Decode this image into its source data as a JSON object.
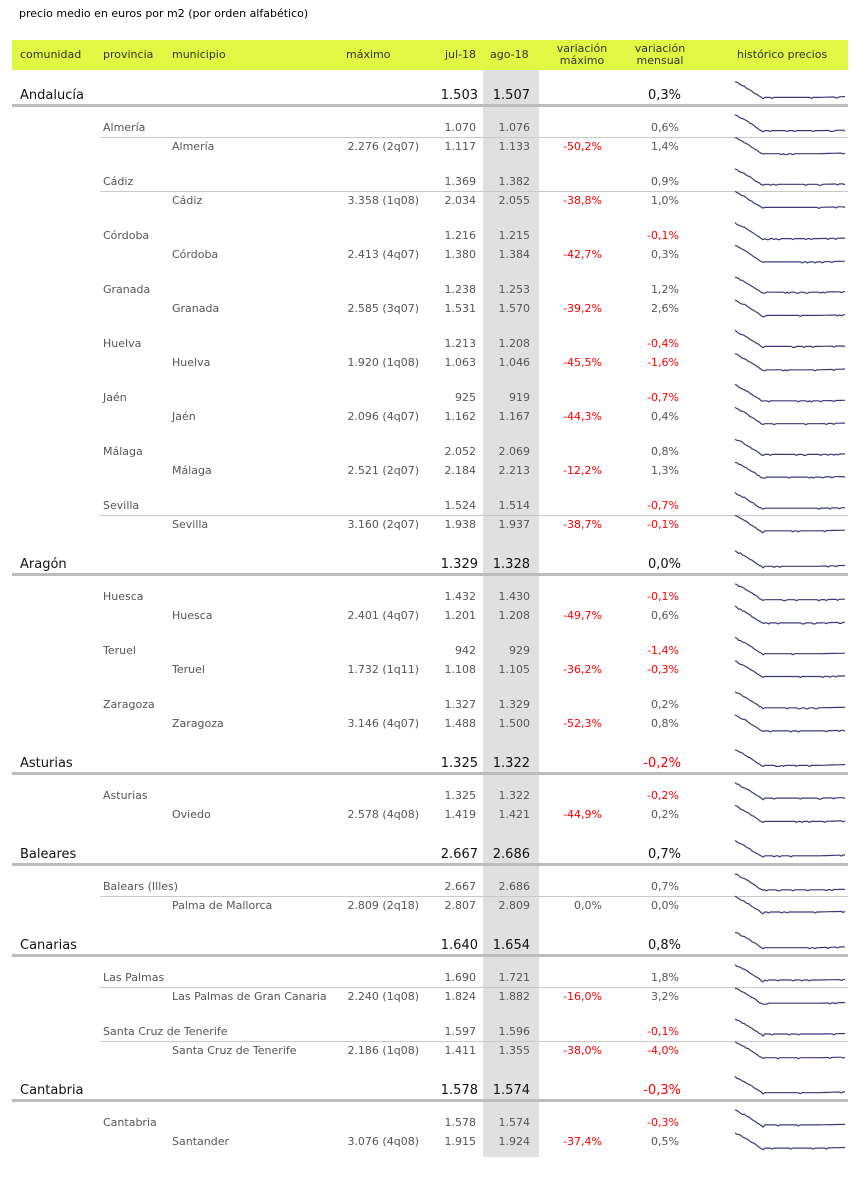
{
  "title": "precio medio en euros por m2 (por orden alfabético)",
  "header": {
    "comunidad": "comunidad",
    "provincia": "provincia",
    "municipio": "municipio",
    "maximo": "máximo",
    "jul": "jul-18",
    "ago": "ago-18",
    "var_max_1": "variación",
    "var_max_2": "máximo",
    "var_men_1": "variación",
    "var_men_2": "mensual",
    "historico": "histórico precios"
  },
  "colors": {
    "header_bg": "#e0f744",
    "negative": "#ff0000",
    "sparkline": "#3a3a7a",
    "ago_band": "#e0e0e0"
  },
  "comunidades": [
    {
      "name": "Andalucía",
      "jul": "1.503",
      "ago": "1.507",
      "var_mensual": "0,3%",
      "provincias": [
        {
          "name": "Almería",
          "jul": "1.070",
          "ago": "1.076",
          "var_mensual": "0,6%",
          "municipio": {
            "name": "Almería",
            "maximo": "2.276 (2q07)",
            "jul": "1.117",
            "ago": "1.133",
            "var_maximo": "-50,2%",
            "var_mensual": "1,4%"
          }
        },
        {
          "name": "Cádiz",
          "jul": "1.369",
          "ago": "1.382",
          "var_mensual": "0,9%",
          "municipio": {
            "name": "Cádiz",
            "maximo": "3.358 (1q08)",
            "jul": "2.034",
            "ago": "2.055",
            "var_maximo": "-38,8%",
            "var_mensual": "1,0%"
          }
        },
        {
          "name": "Córdoba",
          "jul": "1.216",
          "ago": "1.215",
          "var_mensual": "-0,1%",
          "municipio": {
            "name": "Córdoba",
            "maximo": "2.413 (4q07)",
            "jul": "1.380",
            "ago": "1.384",
            "var_maximo": "-42,7%",
            "var_mensual": "0,3%"
          }
        },
        {
          "name": "Granada",
          "jul": "1.238",
          "ago": "1.253",
          "var_mensual": "1,2%",
          "municipio": {
            "name": "Granada",
            "maximo": "2.585 (3q07)",
            "jul": "1.531",
            "ago": "1.570",
            "var_maximo": "-39,2%",
            "var_mensual": "2,6%"
          }
        },
        {
          "name": "Huelva",
          "jul": "1.213",
          "ago": "1.208",
          "var_mensual": "-0,4%",
          "municipio": {
            "name": "Huelva",
            "maximo": "1.920 (1q08)",
            "jul": "1.063",
            "ago": "1.046",
            "var_maximo": "-45,5%",
            "var_mensual": "-1,6%"
          }
        },
        {
          "name": "Jaén",
          "jul": "925",
          "ago": "919",
          "var_mensual": "-0,7%",
          "municipio": {
            "name": "Jaén",
            "maximo": "2.096 (4q07)",
            "jul": "1.162",
            "ago": "1.167",
            "var_maximo": "-44,3%",
            "var_mensual": "0,4%"
          }
        },
        {
          "name": "Málaga",
          "jul": "2.052",
          "ago": "2.069",
          "var_mensual": "0,8%",
          "municipio": {
            "name": "Málaga",
            "maximo": "2.521 (2q07)",
            "jul": "2.184",
            "ago": "2.213",
            "var_maximo": "-12,2%",
            "var_mensual": "1,3%"
          }
        },
        {
          "name": "Sevilla",
          "jul": "1.524",
          "ago": "1.514",
          "var_mensual": "-0,7%",
          "municipio": {
            "name": "Sevilla",
            "maximo": "3.160 (2q07)",
            "jul": "1.938",
            "ago": "1.937",
            "var_maximo": "-38,7%",
            "var_mensual": "-0,1%"
          }
        }
      ]
    },
    {
      "name": "Aragón",
      "jul": "1.329",
      "ago": "1.328",
      "var_mensual": "0,0%",
      "provincias": [
        {
          "name": "Huesca",
          "jul": "1.432",
          "ago": "1.430",
          "var_mensual": "-0,1%",
          "municipio": {
            "name": "Huesca",
            "maximo": "2.401 (4q07)",
            "jul": "1.201",
            "ago": "1.208",
            "var_maximo": "-49,7%",
            "var_mensual": "0,6%"
          }
        },
        {
          "name": "Teruel",
          "jul": "942",
          "ago": "929",
          "var_mensual": "-1,4%",
          "municipio": {
            "name": "Teruel",
            "maximo": "1.732 (1q11)",
            "jul": "1.108",
            "ago": "1.105",
            "var_maximo": "-36,2%",
            "var_mensual": "-0,3%"
          }
        },
        {
          "name": "Zaragoza",
          "jul": "1.327",
          "ago": "1.329",
          "var_mensual": "0,2%",
          "municipio": {
            "name": "Zaragoza",
            "maximo": "3.146 (4q07)",
            "jul": "1.488",
            "ago": "1.500",
            "var_maximo": "-52,3%",
            "var_mensual": "0,8%"
          }
        }
      ]
    },
    {
      "name": "Asturias",
      "jul": "1.325",
      "ago": "1.322",
      "var_mensual": "-0,2%",
      "provincias": [
        {
          "name": "Asturias",
          "jul": "1.325",
          "ago": "1.322",
          "var_mensual": "-0,2%",
          "municipio": {
            "name": "Oviedo",
            "maximo": "2.578 (4q08)",
            "jul": "1.419",
            "ago": "1.421",
            "var_maximo": "-44,9%",
            "var_mensual": "0,2%"
          }
        }
      ]
    },
    {
      "name": "Baleares",
      "jul": "2.667",
      "ago": "2.686",
      "var_mensual": "0,7%",
      "provincias": [
        {
          "name": "Balears (Illes)",
          "jul": "2.667",
          "ago": "2.686",
          "var_mensual": "0,7%",
          "municipio": {
            "name": "Palma de Mallorca",
            "maximo": "2.809 (2q18)",
            "jul": "2.807",
            "ago": "2.809",
            "var_maximo": "0,0%",
            "var_mensual": "0,0%"
          }
        }
      ]
    },
    {
      "name": "Canarias",
      "jul": "1.640",
      "ago": "1.654",
      "var_mensual": "0,8%",
      "provincias": [
        {
          "name": "Las Palmas",
          "jul": "1.690",
          "ago": "1.721",
          "var_mensual": "1,8%",
          "municipio": {
            "name": "Las Palmas de Gran Canaria",
            "maximo": "2.240 (1q08)",
            "jul": "1.824",
            "ago": "1.882",
            "var_maximo": "-16,0%",
            "var_mensual": "3,2%"
          }
        },
        {
          "name": "Santa Cruz de Tenerife",
          "jul": "1.597",
          "ago": "1.596",
          "var_mensual": "-0,1%",
          "municipio": {
            "name": "Santa Cruz de Tenerife",
            "maximo": "2.186 (1q08)",
            "jul": "1.411",
            "ago": "1.355",
            "var_maximo": "-38,0%",
            "var_mensual": "-4,0%"
          }
        }
      ]
    },
    {
      "name": "Cantabria",
      "jul": "1.578",
      "ago": "1.574",
      "var_mensual": "-0,3%",
      "provincias": [
        {
          "name": "Cantabria",
          "jul": "1.578",
          "ago": "1.574",
          "var_mensual": "-0,3%",
          "municipio": {
            "name": "Santander",
            "maximo": "3.076 (4q08)",
            "jul": "1.915",
            "ago": "1.924",
            "var_maximo": "-37,4%",
            "var_mensual": "0,5%"
          }
        }
      ]
    }
  ]
}
